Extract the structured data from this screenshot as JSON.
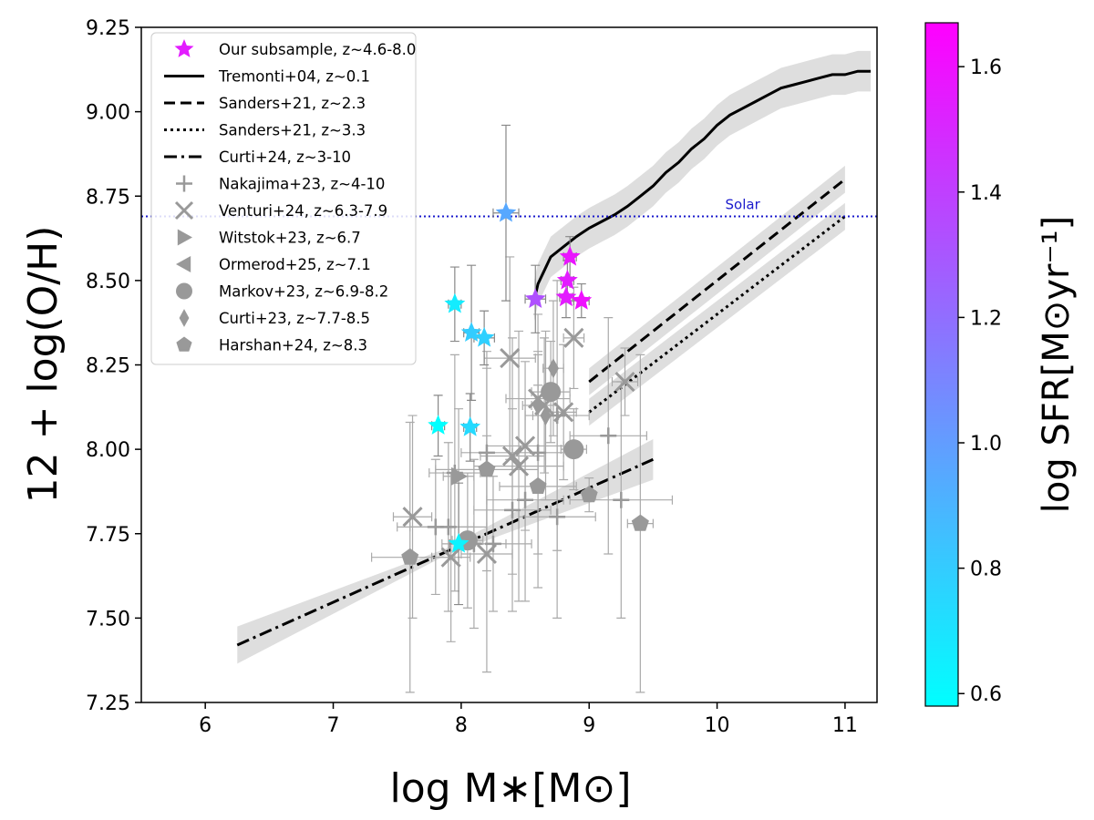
{
  "chart_data": {
    "type": "scatter",
    "xlabel": "log M∗[M⊙]",
    "ylabel": "12 + log(O/H)",
    "xlim": [
      5.5,
      11.25
    ],
    "ylim": [
      7.25,
      9.25
    ],
    "xticks": [
      "6",
      "7",
      "8",
      "9",
      "10",
      "11"
    ],
    "yticks": [
      "7.25",
      "7.50",
      "7.75",
      "8.00",
      "8.25",
      "8.50",
      "8.75",
      "9.00",
      "9.25"
    ],
    "grid": false,
    "legend_position": "top-left",
    "solar": {
      "label": "Solar",
      "value": 8.69
    },
    "colorbar": {
      "label": "log SFR[M⊙yr⁻¹]",
      "range": [
        0.58,
        1.67
      ],
      "ticks": [
        "0.6",
        "0.8",
        "1.0",
        "1.2",
        "1.4",
        "1.6"
      ],
      "cmap_start": "#00ffff",
      "cmap_end": "#ff00ff"
    },
    "legend": [
      {
        "label": "Our subsample, z~4.6-8.0",
        "kind": "star"
      },
      {
        "label": "Tremonti+04, z~0.1",
        "kind": "solid"
      },
      {
        "label": "Sanders+21, z~2.3",
        "kind": "dashed"
      },
      {
        "label": "Sanders+21, z~3.3",
        "kind": "dotted"
      },
      {
        "label": "Curti+24, z~3-10",
        "kind": "dashdot"
      },
      {
        "label": "Nakajima+23, z~4-10",
        "kind": "plus"
      },
      {
        "label": "Venturi+24, z~6.3-7.9",
        "kind": "x"
      },
      {
        "label": "Witstok+23, z~6.7",
        "kind": "triangle-right"
      },
      {
        "label": "Ormerod+25, z~7.1",
        "kind": "triangle-left"
      },
      {
        "label": "Markov+23, z~6.9-8.2",
        "kind": "circle"
      },
      {
        "label": "Curti+23, z~7.7-8.5",
        "kind": "diamond"
      },
      {
        "label": "Harshan+24, z~8.3",
        "kind": "pentagon"
      }
    ],
    "relations": {
      "tremonti": {
        "x": [
          8.57,
          8.6,
          8.65,
          8.7,
          8.8,
          8.9,
          9.0,
          9.1,
          9.2,
          9.3,
          9.4,
          9.5,
          9.6,
          9.7,
          9.8,
          9.9,
          10.0,
          10.1,
          10.2,
          10.3,
          10.4,
          10.5,
          10.6,
          10.7,
          10.8,
          10.9,
          11.0,
          11.1,
          11.2
        ],
        "y": [
          8.44,
          8.49,
          8.53,
          8.57,
          8.6,
          8.63,
          8.655,
          8.675,
          8.695,
          8.72,
          8.75,
          8.78,
          8.82,
          8.85,
          8.89,
          8.92,
          8.96,
          8.99,
          9.01,
          9.03,
          9.05,
          9.07,
          9.08,
          9.09,
          9.1,
          9.11,
          9.11,
          9.12,
          9.12
        ],
        "band": 0.06
      },
      "sanders23": {
        "x": [
          9.0,
          11.0
        ],
        "y": [
          8.2,
          8.8
        ],
        "band": 0.04
      },
      "sanders33": {
        "x": [
          9.0,
          11.0
        ],
        "y": [
          8.11,
          8.69
        ],
        "band": 0.04
      },
      "curti24": {
        "x": [
          6.25,
          9.5
        ],
        "y": [
          7.42,
          7.97
        ],
        "band_ends": [
          0.055,
          0.01,
          0.06
        ]
      }
    },
    "series": [
      {
        "name": "Our subsample, z~4.6-8.0",
        "marker": "star",
        "x": [
          8.35,
          8.85,
          8.83,
          8.58,
          8.82,
          8.94,
          7.95,
          8.08,
          8.18,
          7.82,
          8.07,
          7.98
        ],
        "y": [
          8.7,
          8.57,
          8.5,
          8.445,
          8.45,
          8.44,
          8.43,
          8.345,
          8.33,
          8.07,
          8.065,
          7.72
        ],
        "sfr": [
          0.95,
          1.58,
          1.55,
          1.33,
          1.55,
          1.6,
          0.66,
          0.8,
          0.78,
          0.58,
          0.74,
          0.63
        ],
        "yerr": [
          0.26,
          0.06,
          0.06,
          0.1,
          0.06,
          0.05,
          0.11,
          0.2,
          0.08,
          0.09,
          0.1,
          0.18
        ],
        "xerr": [
          0.1,
          0.05,
          0.05,
          0.08,
          0.05,
          0.06,
          0.05,
          0.06,
          0.08,
          0.05,
          0.05,
          0.07
        ]
      },
      {
        "name": "Nakajima+23, z~4-10",
        "marker": "plus",
        "x": [
          8.2,
          7.9,
          8.75,
          9.15,
          8.6,
          7.8,
          8.5,
          9.25,
          8.75,
          8.25,
          8.1,
          8.4,
          7.95
        ],
        "y": [
          7.99,
          7.77,
          7.8,
          8.04,
          7.99,
          7.77,
          7.85,
          7.85,
          8.1,
          7.72,
          7.72,
          7.82,
          7.93
        ],
        "yerr": [
          0.3,
          0.25,
          0.3,
          0.35,
          0.3,
          0.2,
          0.3,
          0.35,
          0.4,
          0.2,
          0.25,
          0.3,
          0.35
        ],
        "xerr": [
          0.2,
          0.3,
          0.3,
          0.3,
          0.2,
          0.3,
          0.3,
          0.4,
          0.25,
          0.3,
          0.25,
          0.3,
          0.2
        ]
      },
      {
        "name": "Venturi+24, z~6.3-7.9",
        "marker": "x",
        "x": [
          8.38,
          8.88,
          8.6,
          8.8,
          9.28,
          8.5,
          8.4,
          8.65,
          8.45,
          7.62,
          8.2,
          7.92
        ],
        "y": [
          8.27,
          8.33,
          8.15,
          8.11,
          8.2,
          8.01,
          7.98,
          8.13,
          7.95,
          7.8,
          7.69,
          7.68
        ],
        "yerr": [
          0.3,
          0.15,
          0.25,
          0.2,
          0.1,
          0.25,
          0.35,
          0.2,
          0.4,
          0.3,
          0.35,
          0.25
        ],
        "xerr": [
          0.2,
          0.08,
          0.25,
          0.1,
          0.1,
          0.3,
          0.25,
          0.1,
          0.35,
          0.15,
          0.2,
          0.15
        ]
      },
      {
        "name": "Witstok+23, z~6.7",
        "marker": "triangle-right",
        "x": [
          7.98
        ],
        "y": [
          7.92
        ],
        "yerr": [
          0.2
        ],
        "xerr": [
          0.12
        ]
      },
      {
        "name": "Markov+23, z~6.9-8.2",
        "marker": "circle",
        "x": [
          8.7,
          8.88,
          8.05
        ],
        "y": [
          8.17,
          8.0,
          7.73
        ],
        "yerr": [
          0.15,
          0.12,
          0.2
        ],
        "xerr": [
          0.15,
          0.1,
          0.12
        ]
      },
      {
        "name": "Curti+23, z~7.7-8.5",
        "marker": "diamond",
        "x": [
          8.72,
          8.66,
          8.6
        ],
        "y": [
          8.24,
          8.1,
          8.13
        ],
        "yerr": [
          0.2,
          0.25,
          0.15
        ],
        "xerr": [
          0.08,
          0.1,
          0.12
        ]
      },
      {
        "name": "Harshan+24, z~8.3",
        "marker": "pentagon",
        "x": [
          8.2,
          8.6,
          9.0,
          7.6,
          9.4
        ],
        "y": [
          7.94,
          7.89,
          7.865,
          7.68,
          7.78
        ],
        "yerr": [
          0.3,
          0.3,
          0.05,
          0.4,
          0.5
        ],
        "xerr": [
          0.4,
          0.3,
          0.05,
          0.3,
          0.1
        ]
      }
    ]
  }
}
